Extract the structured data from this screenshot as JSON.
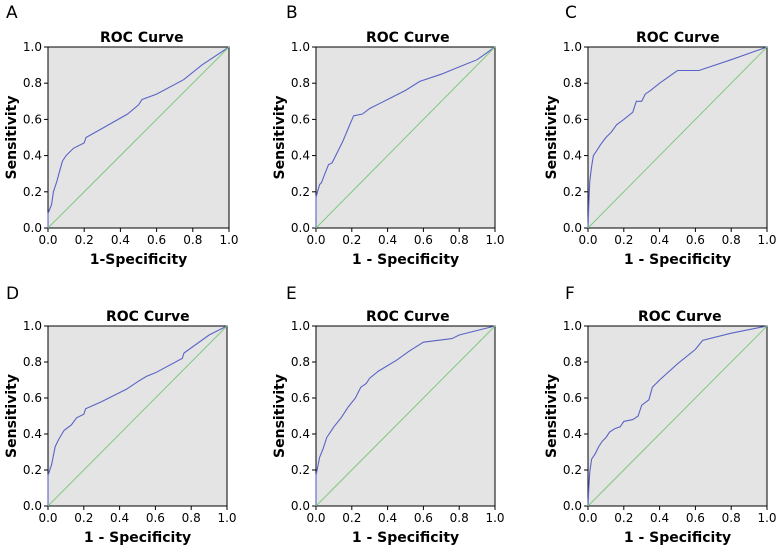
{
  "chart_data": [
    {
      "type": "line",
      "panel": "A",
      "title": "ROC Curve",
      "xlabel": "1-Specificity",
      "ylabel": "Sensitivity",
      "xlim": [
        0,
        1
      ],
      "ylim": [
        0,
        1
      ],
      "xticks": [
        "0.0",
        "0.2",
        "0.4",
        "0.6",
        "0.8",
        "1.0"
      ],
      "yticks": [
        "0.0",
        "0.2",
        "0.4",
        "0.6",
        "0.8",
        "1.0"
      ],
      "series": [
        {
          "name": "ROC",
          "x": [
            0,
            0,
            0.02,
            0.03,
            0.05,
            0.06,
            0.08,
            0.1,
            0.14,
            0.2,
            0.21,
            0.3,
            0.44,
            0.5,
            0.52,
            0.6,
            0.75,
            0.85,
            1
          ],
          "y": [
            0,
            0.08,
            0.13,
            0.2,
            0.26,
            0.3,
            0.37,
            0.4,
            0.44,
            0.47,
            0.5,
            0.55,
            0.63,
            0.68,
            0.71,
            0.74,
            0.82,
            0.9,
            1
          ]
        },
        {
          "name": "Reference",
          "x": [
            0,
            1
          ],
          "y": [
            0,
            1
          ]
        }
      ]
    },
    {
      "type": "line",
      "panel": "B",
      "title": "ROC Curve",
      "xlabel": "1 - Specificity",
      "ylabel": "Sensitivity",
      "xlim": [
        0,
        1
      ],
      "ylim": [
        0,
        1
      ],
      "xticks": [
        "0.0",
        "0.2",
        "0.4",
        "0.6",
        "0.8",
        "1.0"
      ],
      "yticks": [
        "0.0",
        "0.2",
        "0.4",
        "0.6",
        "0.8",
        "1.0"
      ],
      "series": [
        {
          "name": "ROC",
          "x": [
            0,
            0,
            0.02,
            0.03,
            0.05,
            0.07,
            0.09,
            0.12,
            0.15,
            0.18,
            0.21,
            0.26,
            0.3,
            0.4,
            0.5,
            0.58,
            0.7,
            0.8,
            0.9,
            1
          ],
          "y": [
            0,
            0.17,
            0.24,
            0.25,
            0.3,
            0.35,
            0.36,
            0.42,
            0.48,
            0.55,
            0.62,
            0.63,
            0.66,
            0.71,
            0.76,
            0.81,
            0.85,
            0.89,
            0.93,
            1
          ]
        },
        {
          "name": "Reference",
          "x": [
            0,
            1
          ],
          "y": [
            0,
            1
          ]
        }
      ]
    },
    {
      "type": "line",
      "panel": "C",
      "title": "ROC Curve",
      "xlabel": "1 - Specificity",
      "ylabel": "Sensitivity",
      "xlim": [
        0,
        1
      ],
      "ylim": [
        0,
        1
      ],
      "xticks": [
        "0.0",
        "0.2",
        "0.4",
        "0.6",
        "0.8",
        "1.0"
      ],
      "yticks": [
        "0.0",
        "0.2",
        "0.4",
        "0.6",
        "0.8",
        "1.0"
      ],
      "series": [
        {
          "name": "ROC",
          "x": [
            0,
            0.005,
            0.01,
            0.02,
            0.03,
            0.05,
            0.07,
            0.1,
            0.13,
            0.16,
            0.2,
            0.25,
            0.27,
            0.3,
            0.32,
            0.35,
            0.4,
            0.5,
            0.62,
            0.8,
            1
          ],
          "y": [
            0,
            0.15,
            0.26,
            0.34,
            0.4,
            0.43,
            0.46,
            0.5,
            0.53,
            0.57,
            0.6,
            0.64,
            0.7,
            0.7,
            0.74,
            0.76,
            0.8,
            0.87,
            0.87,
            0.93,
            1
          ]
        },
        {
          "name": "Reference",
          "x": [
            0,
            1
          ],
          "y": [
            0,
            1
          ]
        }
      ]
    },
    {
      "type": "line",
      "panel": "D",
      "title": "ROC Curve",
      "xlabel": "1 - Specificity",
      "ylabel": "Sensitivity",
      "xlim": [
        0,
        1
      ],
      "ylim": [
        0,
        1
      ],
      "xticks": [
        "0.0",
        "0.2",
        "0.4",
        "0.6",
        "0.8",
        "1.0"
      ],
      "yticks": [
        "0.0",
        "0.2",
        "0.4",
        "0.6",
        "0.8",
        "1.0"
      ],
      "series": [
        {
          "name": "ROC",
          "x": [
            0,
            0,
            0.02,
            0.04,
            0.06,
            0.09,
            0.13,
            0.16,
            0.2,
            0.21,
            0.3,
            0.44,
            0.5,
            0.55,
            0.6,
            0.75,
            0.76,
            0.9,
            1
          ],
          "y": [
            0,
            0.17,
            0.23,
            0.33,
            0.37,
            0.42,
            0.45,
            0.49,
            0.51,
            0.54,
            0.58,
            0.65,
            0.69,
            0.72,
            0.74,
            0.82,
            0.85,
            0.95,
            1
          ]
        },
        {
          "name": "Reference",
          "x": [
            0,
            1
          ],
          "y": [
            0,
            1
          ]
        }
      ]
    },
    {
      "type": "line",
      "panel": "E",
      "title": "ROC Curve",
      "xlabel": "1 - Specificity",
      "ylabel": "Sensitivity",
      "xlim": [
        0,
        1
      ],
      "ylim": [
        0,
        1
      ],
      "xticks": [
        "0.0",
        "0.2",
        "0.4",
        "0.6",
        "0.8",
        "1.0"
      ],
      "yticks": [
        "0.0",
        "0.2",
        "0.4",
        "0.6",
        "0.8",
        "1.0"
      ],
      "series": [
        {
          "name": "ROC",
          "x": [
            0,
            0,
            0.02,
            0.04,
            0.06,
            0.08,
            0.1,
            0.14,
            0.18,
            0.22,
            0.25,
            0.28,
            0.3,
            0.35,
            0.45,
            0.52,
            0.6,
            0.76,
            0.8,
            1
          ],
          "y": [
            0,
            0.17,
            0.27,
            0.32,
            0.38,
            0.41,
            0.44,
            0.49,
            0.55,
            0.6,
            0.66,
            0.68,
            0.71,
            0.75,
            0.81,
            0.86,
            0.91,
            0.93,
            0.95,
            1
          ]
        },
        {
          "name": "Reference",
          "x": [
            0,
            1
          ],
          "y": [
            0,
            1
          ]
        }
      ]
    },
    {
      "type": "line",
      "panel": "F",
      "title": "ROC Curve",
      "xlabel": "1 - Specificity",
      "ylabel": "Sensitivity",
      "xlim": [
        0,
        1
      ],
      "ylim": [
        0,
        1
      ],
      "xticks": [
        "0.0",
        "0.2",
        "0.4",
        "0.6",
        "0.8",
        "1.0"
      ],
      "yticks": [
        "0.0",
        "0.2",
        "0.4",
        "0.6",
        "0.8",
        "1.0"
      ],
      "series": [
        {
          "name": "ROC",
          "x": [
            0,
            0.005,
            0.01,
            0.02,
            0.04,
            0.06,
            0.08,
            0.1,
            0.12,
            0.15,
            0.18,
            0.2,
            0.25,
            0.28,
            0.3,
            0.34,
            0.36,
            0.4,
            0.5,
            0.6,
            0.64,
            0.8,
            1
          ],
          "y": [
            0,
            0.11,
            0.19,
            0.26,
            0.29,
            0.33,
            0.36,
            0.38,
            0.41,
            0.43,
            0.44,
            0.47,
            0.48,
            0.5,
            0.56,
            0.59,
            0.66,
            0.7,
            0.79,
            0.87,
            0.92,
            0.96,
            1
          ]
        },
        {
          "name": "Reference",
          "x": [
            0,
            1
          ],
          "y": [
            0,
            1
          ]
        }
      ]
    }
  ]
}
